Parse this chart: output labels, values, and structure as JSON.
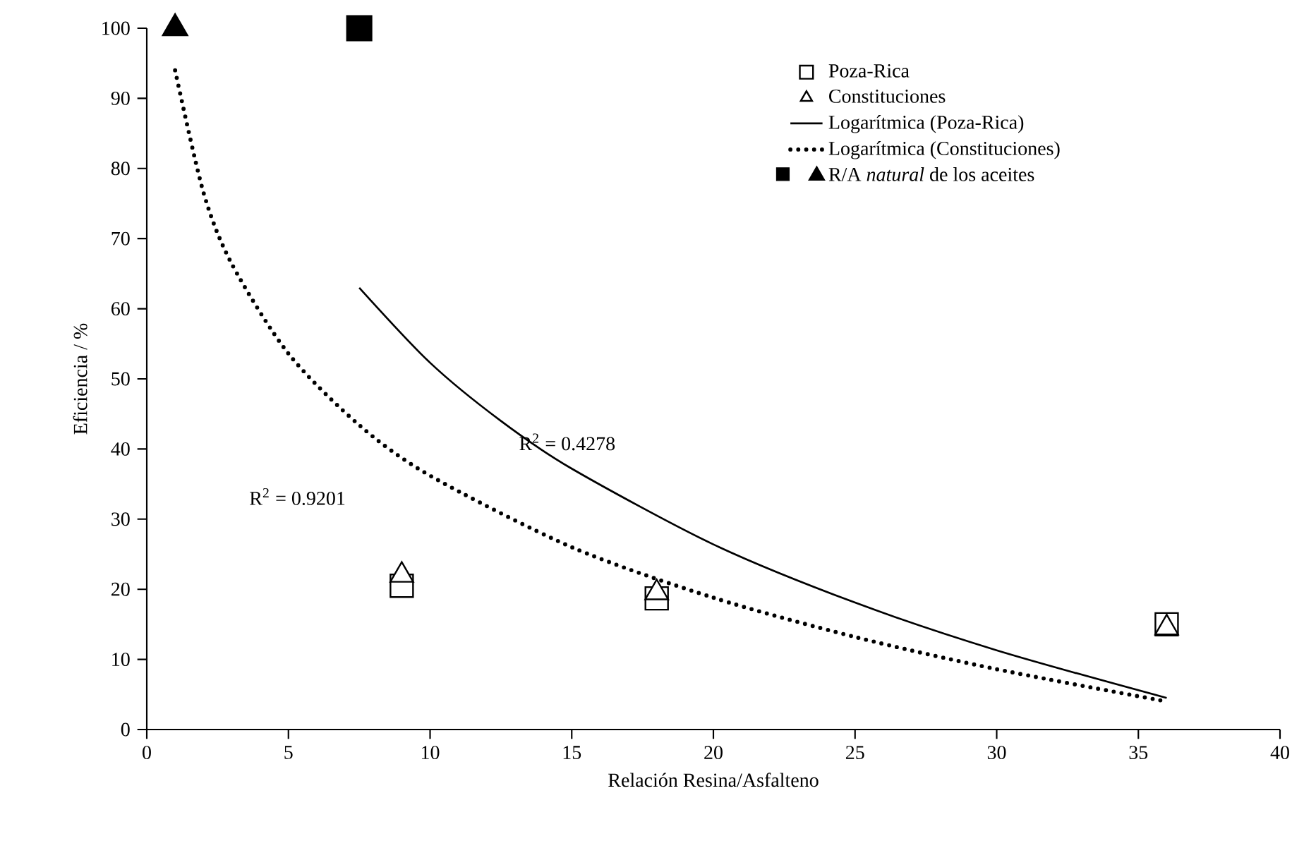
{
  "chart_data": {
    "type": "scatter",
    "xlabel": "Relación Resina/Asfalteno",
    "ylabel": "Eficiencia / %",
    "xlim": [
      0,
      40
    ],
    "xticks": [
      0,
      5,
      10,
      15,
      20,
      25,
      30,
      35,
      40
    ],
    "ylim": [
      0,
      100
    ],
    "yticks": [
      0,
      10,
      20,
      30,
      40,
      50,
      60,
      70,
      80,
      90,
      100
    ],
    "grid": false,
    "legend": "top right",
    "annotations": [
      "R$^{2}$ = 0.4278",
      "R$^{2}$ = 0.9201"
    ],
    "series": [
      {
        "name": "Poza-Rica",
        "marker": "square",
        "color": "#000000",
        "x": [
          9,
          18,
          36
        ],
        "values": [
          20.5,
          18.7,
          15
        ]
      },
      {
        "name": "Constituciones",
        "marker": "triangle",
        "color": "#000000",
        "x": [
          9,
          18,
          36
        ],
        "values": [
          22,
          19.5,
          14.5
        ]
      },
      {
        "name": "Logarítmica (Poza-Rica)",
        "type": "line",
        "marker": "none",
        "line_style": "solid",
        "color": "#000000",
        "x": [
          7.5,
          10,
          12.5,
          15,
          20,
          25,
          30,
          36
        ],
        "values": [
          63,
          52.3,
          44,
          37.2,
          26.4,
          18.1,
          11.3,
          4.5
        ]
      },
      {
        "name": "Logarítmica (Constituciones)",
        "type": "line",
        "marker": "none",
        "line_style": "dotted",
        "color": "#000000",
        "x": [
          1,
          2,
          3,
          5,
          7.5,
          10,
          15,
          20,
          25,
          30,
          36
        ],
        "values": [
          94,
          76.6,
          66.4,
          53.6,
          43.4,
          36.2,
          26,
          18.8,
          13.2,
          8.6,
          4
        ]
      },
      {
        "marker": "square",
        "color": "#000000",
        "x": [
          7.5
        ],
        "values": [
          100
        ]
      },
      {
        "name": "R/A *natural* de los aceites",
        "marker": "triangle",
        "color": "#000000",
        "x": [
          1
        ],
        "values": [
          100
        ]
      }
    ]
  }
}
